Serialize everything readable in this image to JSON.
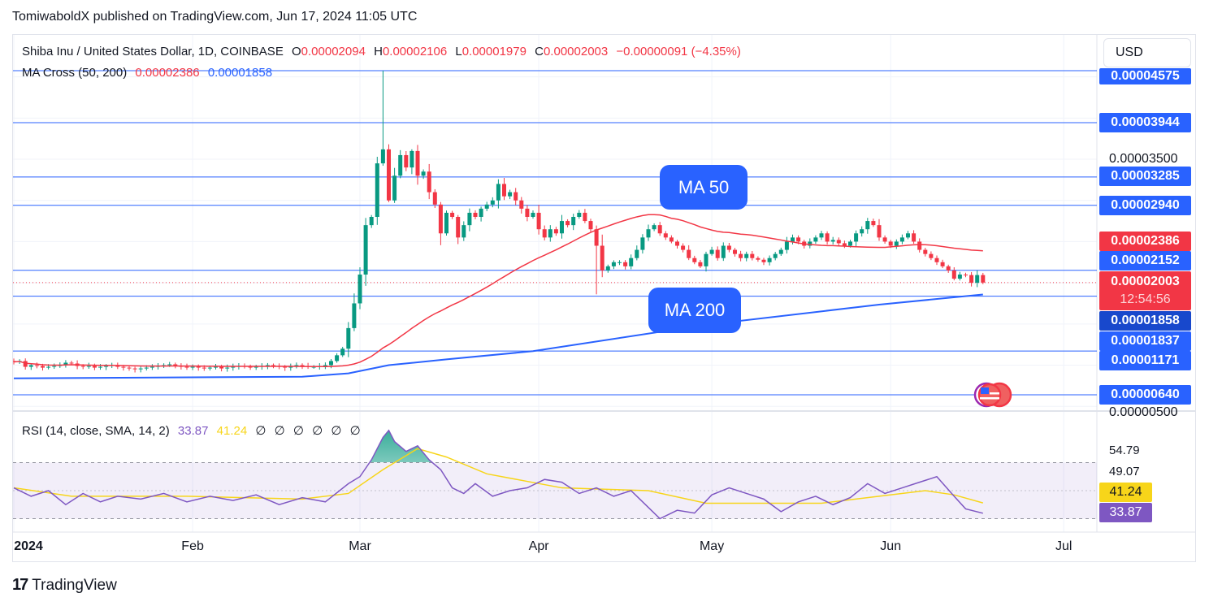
{
  "publisher_line": "TomiwaboldX published on TradingView.com, Jun 17, 2024 11:05 UTC",
  "legend": {
    "symbol": "Shiba Inu / United States Dollar, 1D, COINBASE",
    "o_label": "O",
    "o_value": "0.00002094",
    "h_label": "H",
    "h_value": "0.00002106",
    "l_label": "L",
    "l_value": "0.00001979",
    "c_label": "C",
    "c_value": "0.00002003",
    "change": "−0.00000091 (−4.35%)",
    "ma_label": "MA Cross (50, 200)",
    "ma50_value": "0.00002386",
    "ma200_value": "0.00001858"
  },
  "currency_button": "USD",
  "price_axis": {
    "labels": {
      "top_clipped": "0.00004575",
      "l3944": "0.00003944",
      "t3500": "0.00003500",
      "l3285": "0.00003285",
      "l2940": "0.00002940",
      "ma50": "0.00002386",
      "l2152": "0.00002152",
      "last": "0.00002003",
      "countdown": "12:54:56",
      "ma200": "0.00001858",
      "l1837": "0.00001837",
      "l1171": "0.00001171",
      "l640": "0.00000640",
      "t500": "0.00000500"
    }
  },
  "callouts": {
    "ma50": "MA 50",
    "ma200": "MA 200"
  },
  "rsi": {
    "legend": "RSI (14, close, SMA, 14, 2)",
    "rsi_value": "33.87",
    "sma_value": "41.24",
    "empty_values": [
      "∅",
      "∅",
      "∅",
      "∅",
      "∅",
      "∅"
    ],
    "ticks": {
      "t1": "54.79",
      "t2": "49.07"
    },
    "label_sma": "41.24",
    "label_rsi": "33.87"
  },
  "time_axis": [
    {
      "label": "2024",
      "day": 0
    },
    {
      "label": "Feb",
      "day": 31
    },
    {
      "label": "Mar",
      "day": 60
    },
    {
      "label": "Apr",
      "day": 91
    },
    {
      "label": "May",
      "day": 121
    },
    {
      "label": "Jun",
      "day": 152
    },
    {
      "label": "Jul",
      "day": 182
    }
  ],
  "footer": {
    "logo": "17",
    "brand": "TradingView"
  },
  "colors": {
    "up": "#089981",
    "down": "#f23645",
    "ma50": "#f23645",
    "ma200": "#2962ff",
    "level": "#2962ff",
    "rsi": "#7e57c2",
    "rsi_sma": "#f7d51a"
  },
  "chart_data": {
    "type": "candlestick",
    "title": "Shiba Inu / United States Dollar, 1D, COINBASE",
    "unit": "USD ×1e-5",
    "start_date": "2024-01-01",
    "closes": [
      1.04,
      1.05,
      0.98,
      1.0,
      0.99,
      0.97,
      0.98,
      0.99,
      1.0,
      1.03,
      1.02,
      0.99,
      0.98,
      0.99,
      0.97,
      0.98,
      0.99,
      1.0,
      0.98,
      0.97,
      0.96,
      0.95,
      0.96,
      0.97,
      0.98,
      0.99,
      1.0,
      1.01,
      0.99,
      0.98,
      0.97,
      0.98,
      0.97,
      0.96,
      0.97,
      0.98,
      0.96,
      0.97,
      0.98,
      0.99,
      0.98,
      0.97,
      0.98,
      0.99,
      1.0,
      0.99,
      0.98,
      0.97,
      0.99,
      1.0,
      0.99,
      0.98,
      0.98,
      0.99,
      1.0,
      1.05,
      1.12,
      1.2,
      1.45,
      1.75,
      2.1,
      2.7,
      2.8,
      3.45,
      3.62,
      3.0,
      3.3,
      3.55,
      3.4,
      3.6,
      3.3,
      3.35,
      3.1,
      2.95,
      2.6,
      2.85,
      2.8,
      2.55,
      2.7,
      2.85,
      2.8,
      2.9,
      2.95,
      3.0,
      3.2,
      3.05,
      3.1,
      3.0,
      2.9,
      2.8,
      2.85,
      2.65,
      2.55,
      2.65,
      2.6,
      2.75,
      2.7,
      2.8,
      2.85,
      2.75,
      2.65,
      2.45,
      2.15,
      2.2,
      2.25,
      2.25,
      2.2,
      2.3,
      2.4,
      2.55,
      2.65,
      2.7,
      2.6,
      2.55,
      2.5,
      2.45,
      2.4,
      2.3,
      2.25,
      2.2,
      2.35,
      2.4,
      2.3,
      2.45,
      2.4,
      2.35,
      2.3,
      2.35,
      2.3,
      2.28,
      2.25,
      2.3,
      2.35,
      2.4,
      2.5,
      2.55,
      2.5,
      2.45,
      2.5,
      2.55,
      2.6,
      2.5,
      2.52,
      2.48,
      2.45,
      2.5,
      2.6,
      2.65,
      2.75,
      2.7,
      2.55,
      2.5,
      2.45,
      2.5,
      2.55,
      2.6,
      2.5,
      2.4,
      2.35,
      2.3,
      2.25,
      2.2,
      2.15,
      2.05,
      2.1,
      2.094,
      2.0,
      2.094,
      2.003
    ],
    "notable_high": {
      "day": 64,
      "high": 4.575
    },
    "ma200": [
      [
        0,
        0.84
      ],
      [
        50,
        0.86
      ],
      [
        58,
        0.9
      ],
      [
        65,
        1.0
      ],
      [
        75,
        1.07
      ],
      [
        90,
        1.17
      ],
      [
        120,
        1.49
      ],
      [
        150,
        1.735
      ],
      [
        168,
        1.858
      ]
    ],
    "horizontal_levels": [
      4.575,
      3.944,
      3.285,
      2.94,
      2.152,
      1.837,
      1.171,
      0.64
    ],
    "last_price": 2.003,
    "rsi": {
      "range": [
        30,
        70
      ],
      "series": [
        [
          0,
          52
        ],
        [
          3,
          46
        ],
        [
          6,
          50
        ],
        [
          9,
          40
        ],
        [
          12,
          48
        ],
        [
          15,
          42
        ],
        [
          18,
          46
        ],
        [
          22,
          44
        ],
        [
          26,
          48
        ],
        [
          30,
          42
        ],
        [
          34,
          46
        ],
        [
          38,
          43
        ],
        [
          42,
          47
        ],
        [
          46,
          40
        ],
        [
          50,
          45
        ],
        [
          54,
          42
        ],
        [
          58,
          55
        ],
        [
          60,
          60
        ],
        [
          62,
          72
        ],
        [
          64,
          88
        ],
        [
          65,
          93
        ],
        [
          66,
          85
        ],
        [
          68,
          78
        ],
        [
          70,
          82
        ],
        [
          72,
          72
        ],
        [
          74,
          65
        ],
        [
          76,
          52
        ],
        [
          78,
          48
        ],
        [
          80,
          55
        ],
        [
          83,
          46
        ],
        [
          86,
          50
        ],
        [
          89,
          52
        ],
        [
          92,
          58
        ],
        [
          95,
          56
        ],
        [
          98,
          48
        ],
        [
          101,
          52
        ],
        [
          104,
          46
        ],
        [
          107,
          50
        ],
        [
          110,
          38
        ],
        [
          112,
          30
        ],
        [
          115,
          36
        ],
        [
          118,
          34
        ],
        [
          121,
          47
        ],
        [
          124,
          52
        ],
        [
          127,
          48
        ],
        [
          130,
          44
        ],
        [
          133,
          35
        ],
        [
          136,
          42
        ],
        [
          139,
          46
        ],
        [
          142,
          40
        ],
        [
          145,
          45
        ],
        [
          148,
          55
        ],
        [
          151,
          48
        ],
        [
          154,
          52
        ],
        [
          157,
          56
        ],
        [
          160,
          60
        ],
        [
          163,
          46
        ],
        [
          165,
          37
        ],
        [
          168,
          33.87
        ]
      ],
      "sma": [
        [
          0,
          52
        ],
        [
          10,
          46
        ],
        [
          30,
          46
        ],
        [
          50,
          44
        ],
        [
          58,
          48
        ],
        [
          64,
          65
        ],
        [
          70,
          80
        ],
        [
          75,
          74
        ],
        [
          82,
          62
        ],
        [
          95,
          52
        ],
        [
          110,
          50
        ],
        [
          120,
          41
        ],
        [
          140,
          41
        ],
        [
          150,
          46
        ],
        [
          158,
          50
        ],
        [
          163,
          47
        ],
        [
          168,
          41.24
        ]
      ]
    }
  }
}
